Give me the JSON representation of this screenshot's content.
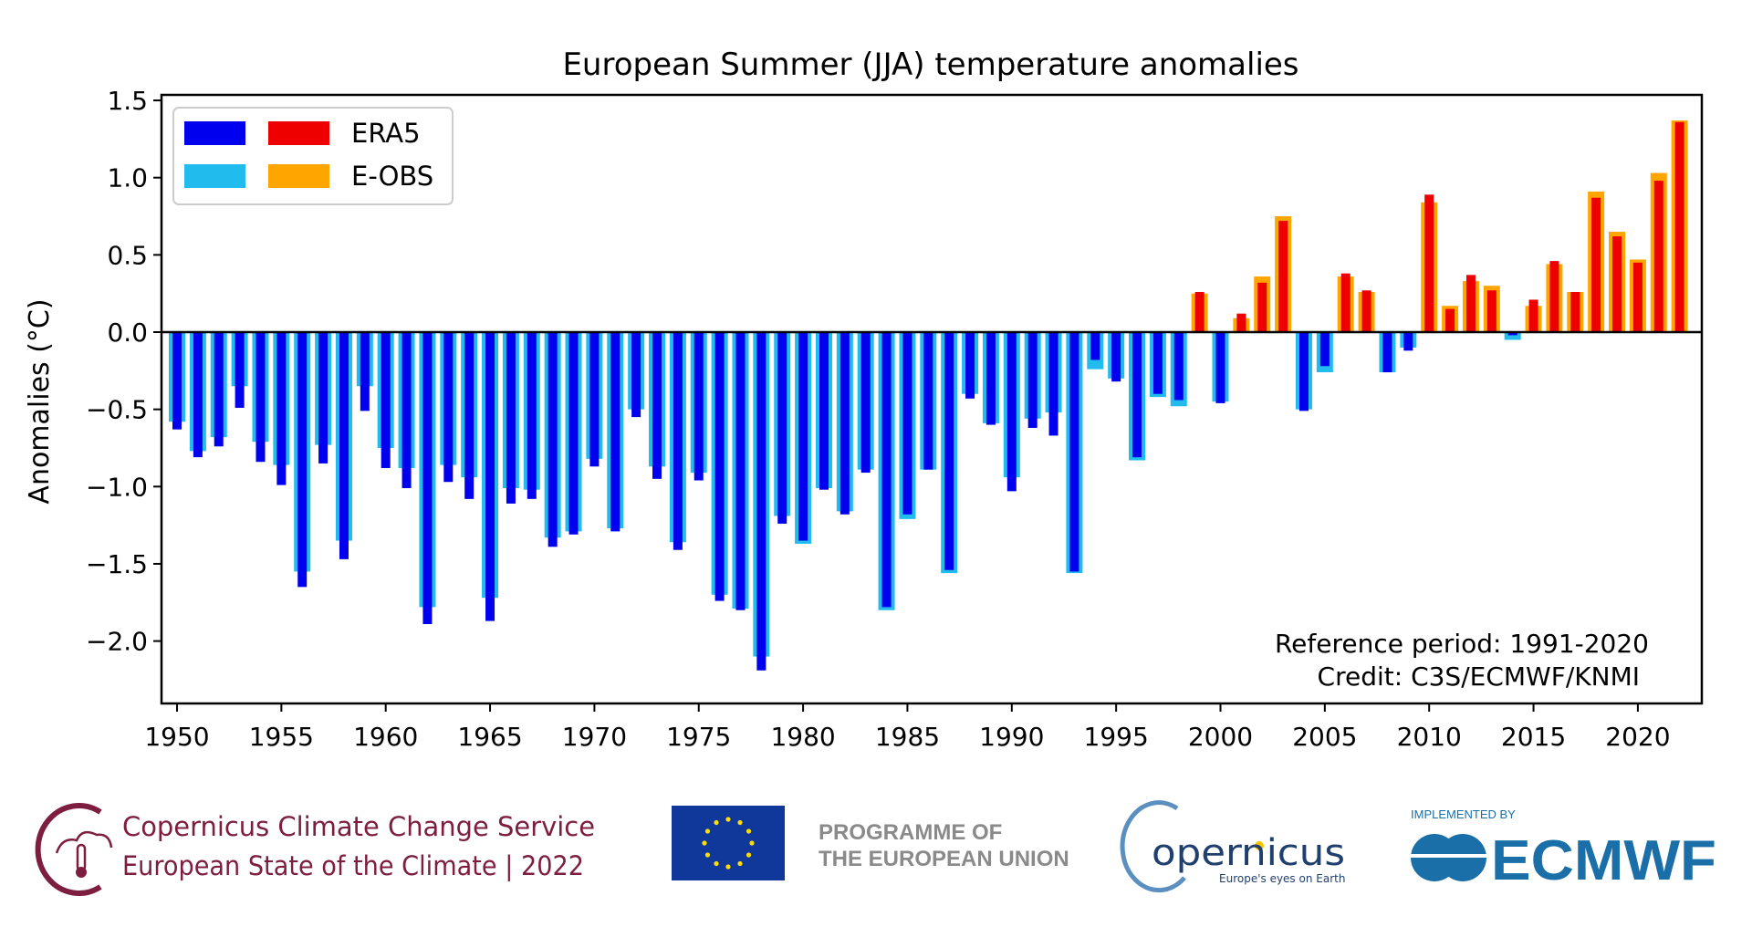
{
  "chart_data": {
    "type": "bar",
    "title": "European Summer (JJA) temperature anomalies",
    "xlabel": "",
    "ylabel": "Anomalies (°C)",
    "ylim": [
      -2.35,
      1.55
    ],
    "xlim": [
      1949,
      2023
    ],
    "yticks": [
      "1.5",
      "1.0",
      "0.5",
      "0.0",
      "−0.5",
      "−1.0",
      "−1.5",
      "−2.0"
    ],
    "ytick_values": [
      1.5,
      1.0,
      0.5,
      0.0,
      -0.5,
      -1.0,
      -1.5,
      -2.0
    ],
    "xticks": [
      "1950",
      "1955",
      "1960",
      "1965",
      "1970",
      "1975",
      "1980",
      "1985",
      "1990",
      "1995",
      "2000",
      "2005",
      "2010",
      "2015",
      "2020"
    ],
    "grid": false,
    "legend_position": "top-left",
    "x": [
      1950,
      1951,
      1952,
      1953,
      1954,
      1955,
      1956,
      1957,
      1958,
      1959,
      1960,
      1961,
      1962,
      1963,
      1964,
      1965,
      1966,
      1967,
      1968,
      1969,
      1970,
      1971,
      1972,
      1973,
      1974,
      1975,
      1976,
      1977,
      1978,
      1979,
      1980,
      1981,
      1982,
      1983,
      1984,
      1985,
      1986,
      1987,
      1988,
      1989,
      1990,
      1991,
      1992,
      1993,
      1994,
      1995,
      1996,
      1997,
      1998,
      1999,
      2000,
      2001,
      2002,
      2003,
      2004,
      2005,
      2006,
      2007,
      2008,
      2009,
      2010,
      2011,
      2012,
      2013,
      2014,
      2015,
      2016,
      2017,
      2018,
      2019,
      2020,
      2021,
      2022
    ],
    "series": [
      {
        "name": "ERA5",
        "colors": {
          "negative": "#0000ee",
          "positive": "#ee0000"
        },
        "values": [
          -0.63,
          -0.81,
          -0.74,
          -0.49,
          -0.84,
          -0.99,
          -1.65,
          -0.85,
          -1.47,
          -0.51,
          -0.88,
          -1.01,
          -1.89,
          -0.97,
          -1.08,
          -1.87,
          -1.11,
          -1.08,
          -1.39,
          -1.31,
          -0.87,
          -1.29,
          -0.55,
          -0.95,
          -1.41,
          -0.96,
          -1.74,
          -1.8,
          -2.19,
          -1.24,
          -1.35,
          -1.02,
          -1.18,
          -0.91,
          -1.78,
          -1.18,
          -0.89,
          -1.54,
          -0.43,
          -0.6,
          -1.03,
          -0.62,
          -0.67,
          -1.55,
          -0.18,
          -0.32,
          -0.81,
          -0.4,
          -0.44,
          0.26,
          -0.46,
          0.12,
          0.32,
          0.72,
          -0.51,
          -0.22,
          0.38,
          0.27,
          -0.26,
          -0.12,
          0.89,
          0.15,
          0.37,
          0.27,
          -0.02,
          0.21,
          0.46,
          0.26,
          0.87,
          0.62,
          0.45,
          0.98,
          1.36
        ]
      },
      {
        "name": "E-OBS",
        "colors": {
          "negative": "#22bbee",
          "positive": "#ffa500"
        },
        "values": [
          -0.58,
          -0.77,
          -0.68,
          -0.35,
          -0.71,
          -0.86,
          -1.55,
          -0.73,
          -1.35,
          -0.35,
          -0.75,
          -0.88,
          -1.78,
          -0.86,
          -0.94,
          -1.72,
          -1.01,
          -1.02,
          -1.33,
          -1.29,
          -0.82,
          -1.27,
          -0.5,
          -0.87,
          -1.36,
          -0.91,
          -1.7,
          -1.79,
          -2.1,
          -1.19,
          -1.37,
          -1.01,
          -1.16,
          -0.89,
          -1.8,
          -1.21,
          -0.89,
          -1.56,
          -0.4,
          -0.59,
          -0.94,
          -0.56,
          -0.52,
          -1.56,
          -0.24,
          -0.3,
          -0.83,
          -0.42,
          -0.48,
          0.25,
          -0.45,
          0.09,
          0.36,
          0.75,
          -0.5,
          -0.26,
          0.36,
          0.26,
          -0.26,
          -0.1,
          0.84,
          0.17,
          0.33,
          0.3,
          -0.05,
          0.17,
          0.44,
          0.26,
          0.91,
          0.65,
          0.47,
          1.03,
          1.37
        ]
      }
    ],
    "annotations": [
      "Reference period: 1991-2020",
      "Credit: C3S/ECMWF/KNMI"
    ]
  },
  "footer": {
    "c3s_line1": "Copernicus Climate Change Service",
    "c3s_line2": "European State of the Climate | 2022",
    "eu_line1": "PROGRAMME OF",
    "eu_line2": "THE EUROPEAN UNION",
    "copernicus_logo": "opernicus",
    "copernicus_tagline": "Europe's eyes on Earth",
    "implemented_by": "IMPLEMENTED BY",
    "ecmwf": "ECMWF",
    "colors": {
      "c3s": "#7d1d3f",
      "eu_blue": "#10389a",
      "eu_star": "#ffdd00",
      "programme_gray": "#8a8a8a",
      "ecmwf_blue": "#1a6fa8"
    }
  }
}
